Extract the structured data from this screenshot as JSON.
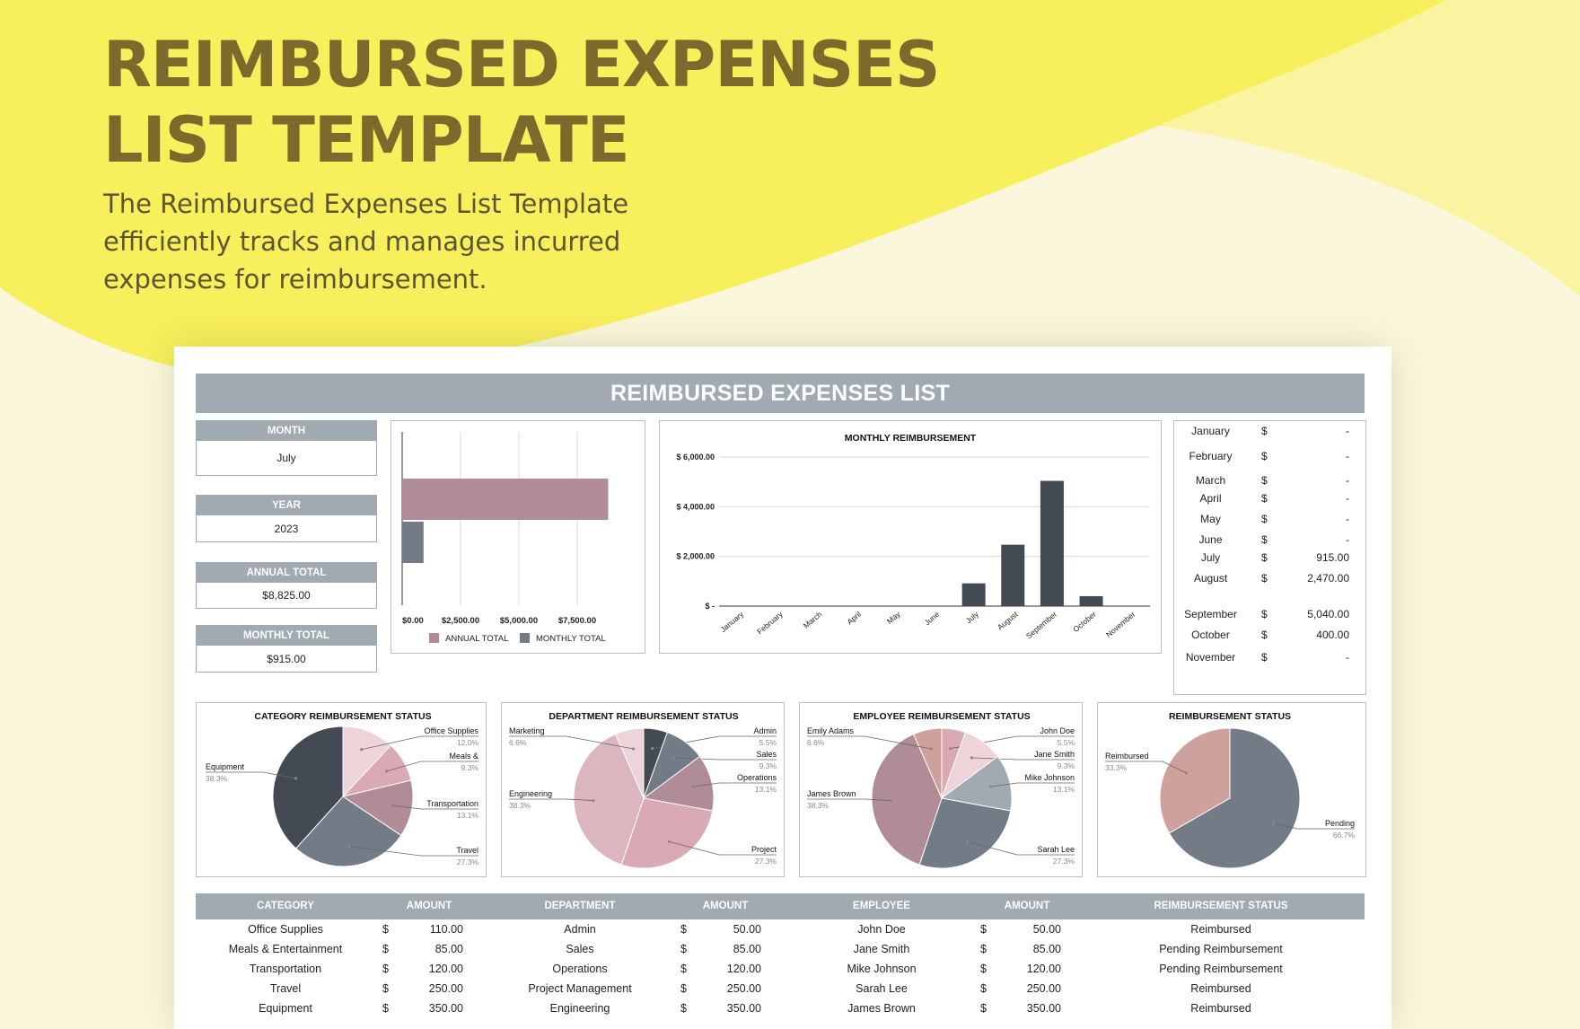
{
  "hero": {
    "title_line1": "REIMBURSED EXPENSES",
    "title_line2": "LIST TEMPLATE",
    "description": "The Reimbursed Expenses List Template efficiently tracks and manages incurred expenses for reimbursement."
  },
  "colors": {
    "background": "#faf7dc",
    "yellow": "#f8ef5c",
    "yellow_light": "#faf4a0",
    "header_gray": "#a1a9b1",
    "title_olive": "#7a6a2c",
    "slate_dark": "#434a54",
    "slate": "#727b86",
    "slate_light": "#a1a9b1",
    "mauve": "#b08d96",
    "rose": "#d9aab3",
    "pink_light": "#eed3d9",
    "dusty_rose": "#cfa19c"
  },
  "sheet": {
    "title": "REIMBURSED EXPENSES LIST",
    "kpis": [
      {
        "label": "MONTH",
        "value": "July"
      },
      {
        "label": "YEAR",
        "value": "2023"
      },
      {
        "label": "ANNUAL TOTAL",
        "value": "$8,825.00"
      },
      {
        "label": "MONTHLY TOTAL",
        "value": "$915.00"
      }
    ],
    "months": [
      {
        "month": "January",
        "currency": "$",
        "amount": "-"
      },
      {
        "month": "February",
        "currency": "$",
        "amount": "-"
      },
      {
        "month": "March",
        "currency": "$",
        "amount": "-"
      },
      {
        "month": "April",
        "currency": "$",
        "amount": "-"
      },
      {
        "month": "May",
        "currency": "$",
        "amount": "-"
      },
      {
        "month": "June",
        "currency": "$",
        "amount": "-"
      },
      {
        "month": "July",
        "currency": "$",
        "amount": "915.00"
      },
      {
        "month": "August",
        "currency": "$",
        "amount": "2,470.00"
      },
      {
        "month": "September",
        "currency": "$",
        "amount": "5,040.00"
      },
      {
        "month": "October",
        "currency": "$",
        "amount": "400.00"
      },
      {
        "month": "November",
        "currency": "$",
        "amount": "-"
      }
    ],
    "table": {
      "headers": [
        "CATEGORY",
        "AMOUNT",
        "DEPARTMENT",
        "AMOUNT",
        "EMPLOYEE",
        "AMOUNT",
        "REIMBURSEMENT STATUS"
      ],
      "rows": [
        {
          "category": "Office Supplies",
          "cur1": "$",
          "amount1": "110.00",
          "department": "Admin",
          "cur2": "$",
          "amount2": "50.00",
          "employee": "John Doe",
          "cur3": "$",
          "amount3": "50.00",
          "status": "Reimbursed"
        },
        {
          "category": "Meals & Entertainment",
          "cur1": "$",
          "amount1": "85.00",
          "department": "Sales",
          "cur2": "$",
          "amount2": "85.00",
          "employee": "Jane Smith",
          "cur3": "$",
          "amount3": "85.00",
          "status": "Pending Reimbursement"
        },
        {
          "category": "Transportation",
          "cur1": "$",
          "amount1": "120.00",
          "department": "Operations",
          "cur2": "$",
          "amount2": "120.00",
          "employee": "Mike Johnson",
          "cur3": "$",
          "amount3": "120.00",
          "status": "Pending Reimbursement"
        },
        {
          "category": "Travel",
          "cur1": "$",
          "amount1": "250.00",
          "department": "Project Management",
          "cur2": "$",
          "amount2": "250.00",
          "employee": "Sarah Lee",
          "cur3": "$",
          "amount3": "250.00",
          "status": "Reimbursed"
        },
        {
          "category": "Equipment",
          "cur1": "$",
          "amount1": "350.00",
          "department": "Engineering",
          "cur2": "$",
          "amount2": "350.00",
          "employee": "James Brown",
          "cur3": "$",
          "amount3": "350.00",
          "status": "Reimbursed"
        }
      ]
    }
  },
  "chart_data": [
    {
      "type": "bar",
      "orientation": "horizontal",
      "title": "",
      "categories": [
        "ANNUAL TOTAL",
        "MONTHLY TOTAL"
      ],
      "values": [
        8825,
        915
      ],
      "series_colors": [
        "#b08d96",
        "#727b86"
      ],
      "xlim": [
        0,
        10000
      ],
      "ticks": [
        "$0.00",
        "$2,500.00",
        "$5,000.00",
        "$7,500.00"
      ],
      "legend": [
        "ANNUAL TOTAL",
        "MONTHLY TOTAL"
      ],
      "legend_position": "bottom",
      "grid": true
    },
    {
      "type": "bar",
      "title": "MONTHLY REIMBURSEMENT",
      "categories": [
        "January",
        "February",
        "March",
        "April",
        "May",
        "June",
        "July",
        "August",
        "September",
        "October",
        "November"
      ],
      "values": [
        0,
        0,
        0,
        0,
        0,
        0,
        915,
        2470,
        5040,
        400,
        0
      ],
      "ylim": [
        0,
        6000
      ],
      "yticks": [
        "$ -",
        "$ 2,000.00",
        "$ 4,000.00",
        "$ 6,000.00"
      ],
      "color": "#434a54",
      "grid": true
    },
    {
      "type": "pie",
      "title": "CATEGORY REIMBURSEMENT STATUS",
      "slices": [
        {
          "label": "Office Supplies",
          "value": 12.0,
          "pct": "12.0%",
          "color": "#eed3d9"
        },
        {
          "label": "Meals &",
          "value": 9.3,
          "pct": "9.3%",
          "color": "#d9aab3"
        },
        {
          "label": "Transportation",
          "value": 13.1,
          "pct": "13.1%",
          "color": "#b08d96"
        },
        {
          "label": "Travel",
          "value": 27.3,
          "pct": "27.3%",
          "color": "#727b86"
        },
        {
          "label": "Equipment",
          "value": 38.3,
          "pct": "38.3%",
          "color": "#434a54"
        }
      ]
    },
    {
      "type": "pie",
      "title": "DEPARTMENT REIMBURSEMENT STATUS",
      "slices": [
        {
          "label": "Admin",
          "value": 5.5,
          "pct": "5.5%",
          "color": "#434a54"
        },
        {
          "label": "Sales",
          "value": 9.3,
          "pct": "9.3%",
          "color": "#727b86"
        },
        {
          "label": "Operations",
          "value": 13.1,
          "pct": "13.1%",
          "color": "#b08d96"
        },
        {
          "label": "Project",
          "value": 27.3,
          "pct": "27.3%",
          "color": "#d9aab3"
        },
        {
          "label": "Engineering",
          "value": 38.3,
          "pct": "38.3%",
          "color": "#dcb6bf"
        },
        {
          "label": "Marketing",
          "value": 6.6,
          "pct": "6.6%",
          "color": "#eed3d9"
        }
      ]
    },
    {
      "type": "pie",
      "title": "EMPLOYEE REIMBURSEMENT STATUS",
      "slices": [
        {
          "label": "John Doe",
          "value": 5.5,
          "pct": "5.5%",
          "color": "#d9aab3"
        },
        {
          "label": "Jane Smith",
          "value": 9.3,
          "pct": "9.3%",
          "color": "#eed3d9"
        },
        {
          "label": "Mike Johnson",
          "value": 13.1,
          "pct": "13.1%",
          "color": "#a1a9b1"
        },
        {
          "label": "Sarah Lee",
          "value": 27.3,
          "pct": "27.3%",
          "color": "#727b86"
        },
        {
          "label": "James Brown",
          "value": 38.3,
          "pct": "38.3%",
          "color": "#b08d96"
        },
        {
          "label": "Emily Adams",
          "value": 6.6,
          "pct": "6.6%",
          "color": "#cfa19c"
        }
      ]
    },
    {
      "type": "pie",
      "title": "REIMBURSEMENT STATUS",
      "slices": [
        {
          "label": "Pending",
          "value": 66.7,
          "pct": "66.7%",
          "color": "#727b86"
        },
        {
          "label": "Reimbursed",
          "value": 33.3,
          "pct": "33.3%",
          "color": "#cfa19c"
        }
      ]
    }
  ]
}
